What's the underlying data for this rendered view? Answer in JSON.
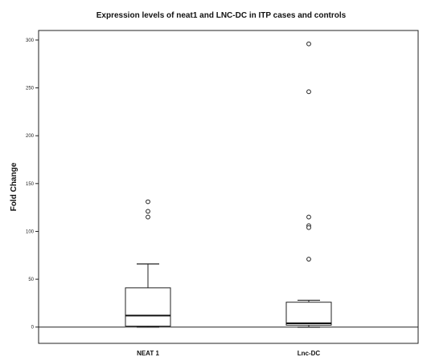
{
  "chart_data": {
    "type": "box",
    "title": "Expression levels of neat1 and LNC-DC in ITP cases and controls",
    "xlabel": "",
    "ylabel": "Fold Change",
    "ylim": [
      -17,
      310
    ],
    "yticks": [
      0,
      50,
      100,
      150,
      200,
      250,
      300
    ],
    "reference_line": 0,
    "grid": false,
    "categories": [
      "NEAT 1",
      "Lnc-DC"
    ],
    "boxes": [
      {
        "category": "NEAT 1",
        "whisker_low": 0,
        "q1": 1,
        "median": 12,
        "q3": 41,
        "whisker_high": 66,
        "outliers": [
          131,
          121,
          115
        ]
      },
      {
        "category": "Lnc-DC",
        "whisker_low": 0,
        "q1": 2,
        "median": 4,
        "q3": 26,
        "whisker_high": 28,
        "outliers": [
          296,
          246,
          115,
          106,
          104,
          71
        ]
      }
    ]
  }
}
